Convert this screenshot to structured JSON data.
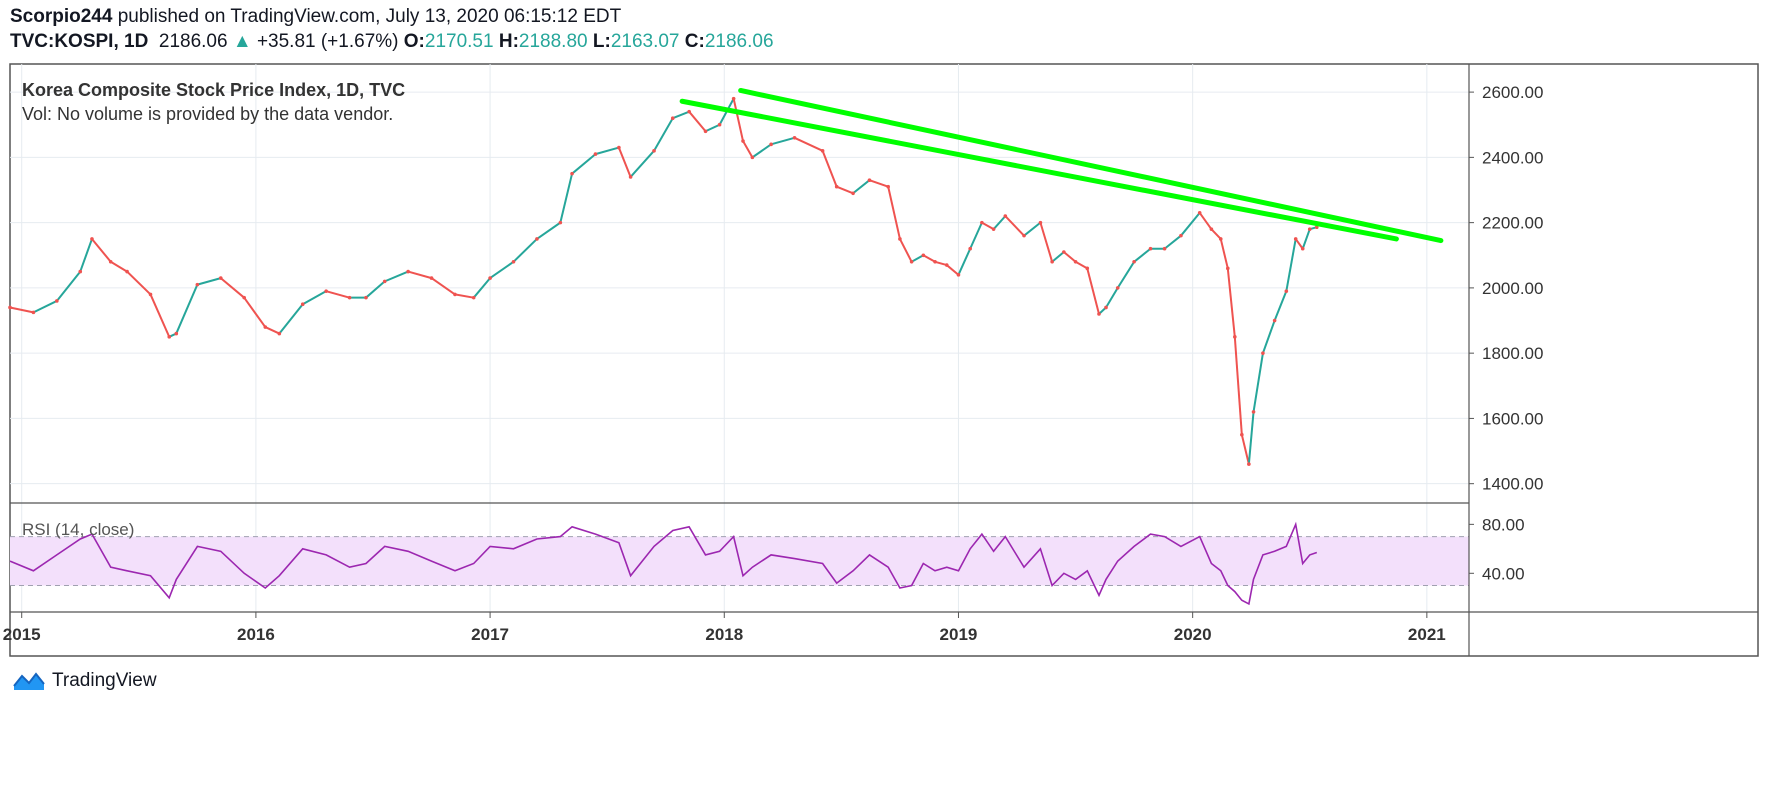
{
  "header": {
    "publisher": "Scorpio244",
    "published_text": "published on TradingView.com, July 13, 2020 06:15:12 EDT",
    "symbol": "TVC:KOSPI, 1D",
    "last": "2186.06",
    "change": "+35.81 (+1.67%)",
    "o_label": "O:",
    "o_value": "2170.51",
    "h_label": "H:",
    "h_value": "2188.80",
    "l_label": "L:",
    "l_value": "2163.07",
    "c_label": "C:",
    "c_value": "2186.06"
  },
  "footer": {
    "brand": "TradingView"
  },
  "colors": {
    "up": "#26a69a",
    "down": "#ef5350",
    "trendline": "#00ff00",
    "rsi_line": "#9c27b0",
    "rsi_band": "#f3e0fb",
    "grid": "#e6ebf0",
    "border": "#555555"
  },
  "chart_data": [
    {
      "type": "line",
      "title": "Korea Composite Stock Price Index, 1D, TVC",
      "subtitle": "Vol: No volume is provided by the data vendor.",
      "x_ticks": [
        "2015",
        "2016",
        "2017",
        "2018",
        "2019",
        "2020",
        "2021"
      ],
      "y_ticks": [
        "2600.00",
        "2400.00",
        "2200.00",
        "2000.00",
        "1800.00",
        "1600.00",
        "1400.00"
      ],
      "ylim": [
        1350,
        2680
      ],
      "xlim": [
        2014.95,
        2021.18
      ],
      "grid": true,
      "series": [
        {
          "x": [
            2014.95,
            2015.05,
            2015.15,
            2015.25,
            2015.3,
            2015.38,
            2015.45,
            2015.55,
            2015.63,
            2015.66,
            2015.75,
            2015.85,
            2015.95,
            2016.04,
            2016.1,
            2016.2,
            2016.3,
            2016.4,
            2016.47,
            2016.55,
            2016.65,
            2016.75,
            2016.85,
            2016.93,
            2017.0,
            2017.1,
            2017.2,
            2017.3,
            2017.35,
            2017.45,
            2017.55,
            2017.6,
            2017.7,
            2017.78,
            2017.85,
            2017.92,
            2017.98,
            2018.04,
            2018.08,
            2018.12,
            2018.2,
            2018.3,
            2018.42,
            2018.48,
            2018.55,
            2018.62,
            2018.7,
            2018.75,
            2018.8,
            2018.85,
            2018.9,
            2018.95,
            2019.0,
            2019.05,
            2019.1,
            2019.15,
            2019.2,
            2019.28,
            2019.35,
            2019.4,
            2019.45,
            2019.5,
            2019.55,
            2019.6,
            2019.63,
            2019.68,
            2019.75,
            2019.82,
            2019.88,
            2019.95,
            2020.03,
            2020.08,
            2020.12,
            2020.15,
            2020.18,
            2020.21,
            2020.24,
            2020.26,
            2020.3,
            2020.35,
            2020.4,
            2020.44,
            2020.47,
            2020.5,
            2020.53
          ],
          "values": [
            1940,
            1925,
            1960,
            2050,
            2150,
            2080,
            2050,
            1980,
            1850,
            1860,
            2010,
            2030,
            1970,
            1880,
            1860,
            1950,
            1990,
            1970,
            1970,
            2020,
            2050,
            2030,
            1980,
            1970,
            2030,
            2080,
            2150,
            2200,
            2350,
            2410,
            2430,
            2340,
            2420,
            2520,
            2540,
            2480,
            2500,
            2580,
            2450,
            2400,
            2440,
            2460,
            2420,
            2310,
            2290,
            2330,
            2310,
            2150,
            2080,
            2100,
            2080,
            2070,
            2040,
            2120,
            2200,
            2180,
            2220,
            2160,
            2200,
            2080,
            2110,
            2080,
            2060,
            1920,
            1940,
            2000,
            2080,
            2120,
            2120,
            2160,
            2230,
            2180,
            2150,
            2060,
            1850,
            1550,
            1460,
            1620,
            1800,
            1900,
            1990,
            2150,
            2120,
            2180,
            2186
          ]
        }
      ],
      "trendlines": [
        {
          "x": [
            2017.82,
            2020.87
          ],
          "values": [
            2572,
            2150
          ]
        },
        {
          "x": [
            2018.07,
            2021.06
          ],
          "values": [
            2605,
            2145
          ]
        }
      ]
    },
    {
      "type": "line",
      "title": "RSI (14, close)",
      "y_ticks": [
        "80.00",
        "40.00"
      ],
      "ylim": [
        10,
        95
      ],
      "band": [
        30,
        70
      ],
      "series": [
        {
          "x": [
            2014.95,
            2015.05,
            2015.15,
            2015.25,
            2015.3,
            2015.38,
            2015.45,
            2015.55,
            2015.63,
            2015.66,
            2015.75,
            2015.85,
            2015.95,
            2016.04,
            2016.1,
            2016.2,
            2016.3,
            2016.4,
            2016.47,
            2016.55,
            2016.65,
            2016.75,
            2016.85,
            2016.93,
            2017.0,
            2017.1,
            2017.2,
            2017.3,
            2017.35,
            2017.45,
            2017.55,
            2017.6,
            2017.7,
            2017.78,
            2017.85,
            2017.92,
            2017.98,
            2018.04,
            2018.08,
            2018.12,
            2018.2,
            2018.3,
            2018.42,
            2018.48,
            2018.55,
            2018.62,
            2018.7,
            2018.75,
            2018.8,
            2018.85,
            2018.9,
            2018.95,
            2019.0,
            2019.05,
            2019.1,
            2019.15,
            2019.2,
            2019.28,
            2019.35,
            2019.4,
            2019.45,
            2019.5,
            2019.55,
            2019.6,
            2019.63,
            2019.68,
            2019.75,
            2019.82,
            2019.88,
            2019.95,
            2020.03,
            2020.08,
            2020.12,
            2020.15,
            2020.18,
            2020.21,
            2020.24,
            2020.26,
            2020.3,
            2020.35,
            2020.4,
            2020.44,
            2020.47,
            2020.5,
            2020.53
          ],
          "values": [
            50,
            42,
            55,
            68,
            72,
            45,
            42,
            38,
            20,
            35,
            62,
            58,
            40,
            28,
            38,
            60,
            55,
            45,
            48,
            62,
            58,
            50,
            42,
            48,
            62,
            60,
            68,
            70,
            78,
            72,
            65,
            38,
            62,
            75,
            78,
            55,
            58,
            70,
            38,
            45,
            55,
            52,
            48,
            32,
            42,
            55,
            45,
            28,
            30,
            48,
            42,
            45,
            42,
            60,
            72,
            58,
            70,
            45,
            60,
            30,
            40,
            35,
            42,
            22,
            35,
            50,
            62,
            72,
            70,
            62,
            70,
            48,
            42,
            30,
            25,
            18,
            15,
            35,
            55,
            58,
            62,
            80,
            48,
            55,
            57
          ]
        }
      ]
    }
  ]
}
